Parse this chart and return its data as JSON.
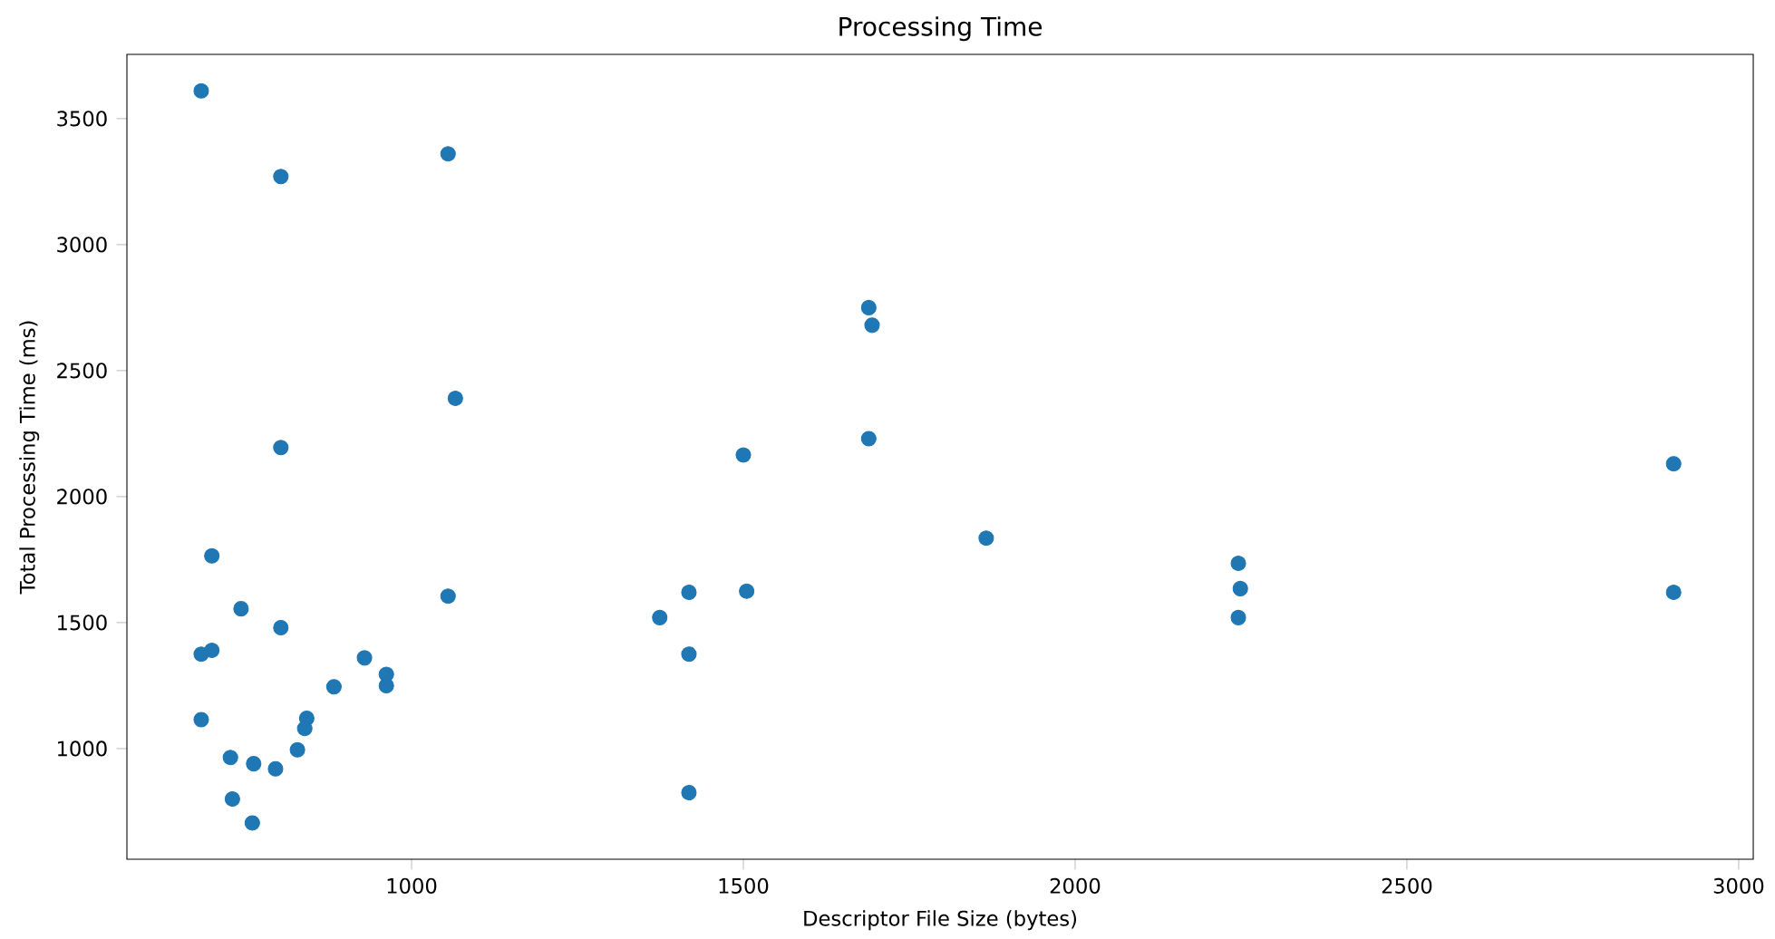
{
  "chart_data": {
    "type": "scatter",
    "title": "Processing Time",
    "xlabel": "Descriptor File Size (bytes)",
    "ylabel": "Total Processing Time (ms)",
    "x": [
      683,
      803,
      1055,
      1066,
      803,
      699,
      743,
      803,
      1055,
      683,
      699,
      929,
      962,
      962,
      883,
      842,
      839,
      683,
      727,
      762,
      795,
      828,
      730,
      760,
      1374,
      1418,
      1418,
      1418,
      1500,
      1505,
      1689,
      1694,
      1689,
      1866,
      2246,
      2249,
      2246,
      2902,
      2902
    ],
    "series": [
      {
        "color": "#1f77b4",
        "values": [
          3610,
          3270,
          3360,
          2390,
          2195,
          1765,
          1555,
          1480,
          1605,
          1375,
          1390,
          1360,
          1295,
          1250,
          1245,
          1120,
          1080,
          1115,
          965,
          940,
          920,
          995,
          800,
          705,
          1520,
          1620,
          1375,
          825,
          2165,
          1625,
          2750,
          2680,
          2230,
          1835,
          1735,
          1635,
          1520,
          2130,
          1620
        ]
      }
    ],
    "marker": "circle",
    "xlim": [
      571,
      3022
    ],
    "ylim": [
      561,
      3755
    ],
    "xticks": [
      1000,
      1500,
      2000,
      2500,
      3000
    ],
    "yticks": [
      1000,
      1500,
      2000,
      2500,
      3000,
      3500
    ]
  }
}
